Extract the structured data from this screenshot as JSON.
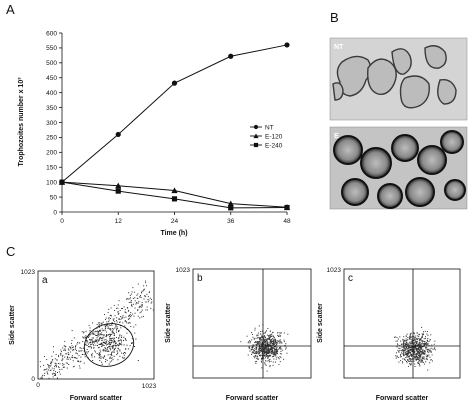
{
  "labels": {
    "A": "A",
    "B": "B",
    "C": "C",
    "a": "a",
    "b": "b",
    "c": "c"
  },
  "photos": {
    "top_label": "NT",
    "bottom_label": "E"
  },
  "chart_data": [
    {
      "type": "line",
      "xlabel": "Time (h)",
      "ylabel": "Trophozoites number x 10³",
      "x": [
        0,
        12,
        24,
        36,
        48
      ],
      "xlim": [
        0,
        48
      ],
      "ylim": [
        0,
        600
      ],
      "xticks": [
        0,
        12,
        24,
        36,
        48
      ],
      "yticks": [
        0,
        50,
        100,
        150,
        200,
        250,
        300,
        350,
        400,
        450,
        500,
        550,
        600
      ],
      "grid": false,
      "legend_position": "right",
      "series": [
        {
          "name": "NT",
          "marker": "circle",
          "values": [
            100,
            260,
            432,
            522,
            560
          ]
        },
        {
          "name": "E-120",
          "marker": "triangle",
          "values": [
            100,
            88,
            72,
            28,
            16
          ]
        },
        {
          "name": "E-240",
          "marker": "square",
          "values": [
            100,
            70,
            44,
            14,
            15
          ]
        }
      ]
    },
    {
      "type": "scatter",
      "panel": "a",
      "xlabel": "Forward scatter",
      "ylabel": "Side scatter",
      "xlim": [
        0,
        1023
      ],
      "ylim": [
        0,
        1023
      ],
      "xticks": [
        "0",
        "1023"
      ],
      "yticks": [
        "0",
        "1023"
      ],
      "gate": "ellipse"
    },
    {
      "type": "scatter",
      "panel": "b",
      "xlabel": "Forward scatter",
      "ylabel": "Side scatter",
      "xlim": [
        0,
        1023
      ],
      "ylim": [
        0,
        1023
      ],
      "yticks": [
        "1023"
      ],
      "gate": "quadrant"
    },
    {
      "type": "scatter",
      "panel": "c",
      "xlabel": "Forward scatter",
      "ylabel": "Side scatter",
      "xlim": [
        0,
        1023
      ],
      "ylim": [
        0,
        1023
      ],
      "yticks": [
        "1023"
      ],
      "gate": "quadrant"
    }
  ]
}
